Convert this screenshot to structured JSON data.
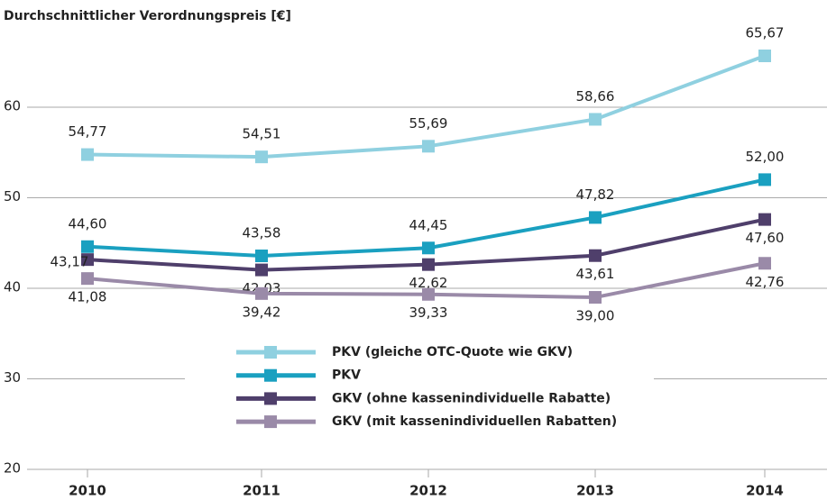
{
  "chart_data": {
    "type": "line",
    "title": "Durchschnittlicher Verordnungspreis [€]",
    "categories": [
      "2010",
      "2011",
      "2012",
      "2013",
      "2014"
    ],
    "series": [
      {
        "name": "PKV (gleiche OTC-Quote wie GKV)",
        "color": "#8fd0e0",
        "values": [
          54.77,
          54.51,
          55.69,
          58.66,
          65.67
        ],
        "value_labels": [
          "54,77",
          "54,51",
          "55,69",
          "58,66",
          "65,67"
        ]
      },
      {
        "name": "PKV",
        "color": "#1aa0c0",
        "values": [
          44.6,
          43.58,
          44.45,
          47.82,
          52.0
        ],
        "value_labels": [
          "44,60",
          "43,58",
          "44,45",
          "47,82",
          "52,00"
        ]
      },
      {
        "name": "GKV (ohne kassenindividuelle Rabatte)",
        "color": "#4f3f6b",
        "values": [
          43.17,
          42.03,
          42.62,
          43.61,
          47.6
        ],
        "value_labels": [
          "43,17",
          "42,03",
          "42,62",
          "43,61",
          "47,60"
        ]
      },
      {
        "name": "GKV (mit kassenindividuellen Rabatten)",
        "color": "#9a8aa8",
        "values": [
          41.08,
          39.42,
          39.33,
          39.0,
          42.76
        ],
        "value_labels": [
          "41,08",
          "39,42",
          "39,33",
          "39,00",
          "42,76"
        ]
      }
    ],
    "ylim": [
      20,
      70
    ],
    "yticks": [
      20,
      30,
      40,
      50,
      60
    ],
    "grid": true
  }
}
